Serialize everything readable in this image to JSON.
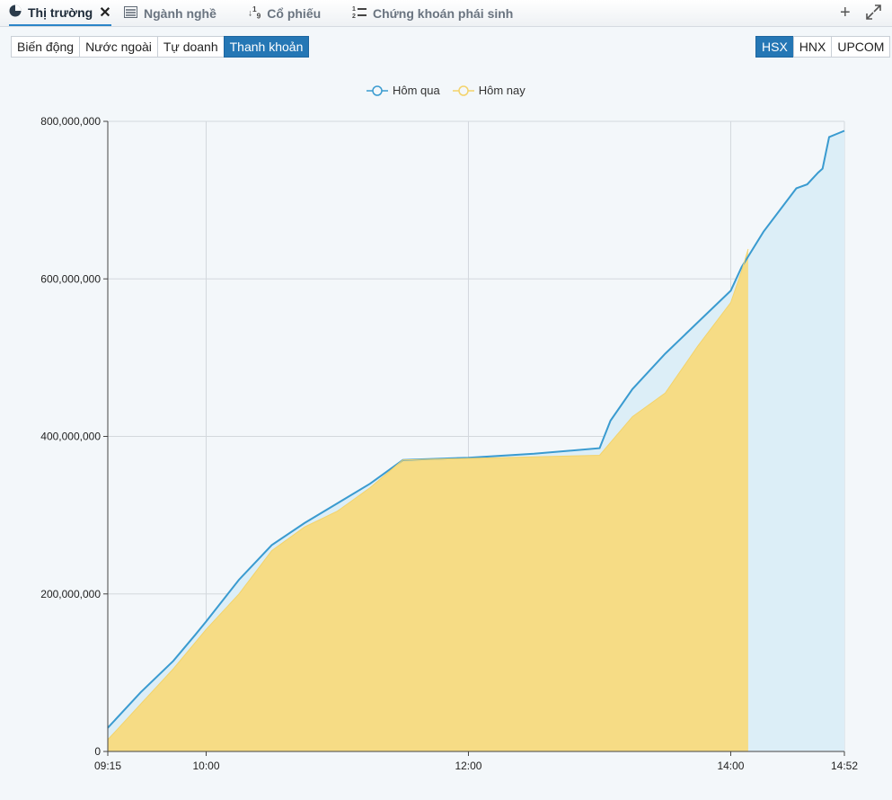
{
  "tabs": [
    {
      "label": "Thị trường",
      "icon": "pie-chart-icon"
    },
    {
      "label": "Ngành nghề",
      "icon": "list-icon"
    },
    {
      "label": "Cổ phiếu",
      "icon": "sort-numeric-icon"
    },
    {
      "label": "Chứng khoán phái sinh",
      "icon": "numbered-list-icon"
    }
  ],
  "window_icons": {
    "add": "plus-icon",
    "expand": "expand-icon"
  },
  "views": [
    "Biến động",
    "Nước ngoài",
    "Tự doanh",
    "Thanh khoản"
  ],
  "active_view": "Thanh khoản",
  "exchanges": [
    "HSX",
    "HNX",
    "UPCOM"
  ],
  "active_exchange": "HSX",
  "colors": {
    "yesterday": "#3a9bd0",
    "yesterday_fill": "#dceef7",
    "today": "#f6dc85",
    "today_stroke": "#f3d36b",
    "accent": "#2577b5"
  },
  "chart_data": {
    "type": "area",
    "legend": [
      "Hôm qua",
      "Hôm nay"
    ],
    "legend_position": "top-center",
    "ylim": [
      0,
      800000000
    ],
    "yticks": [
      "0",
      "200,000,000",
      "400,000,000",
      "600,000,000",
      "800,000,000"
    ],
    "xlim": [
      "09:15",
      "14:52"
    ],
    "xticks": [
      "09:15",
      "10:00",
      "12:00",
      "14:00",
      "14:52"
    ],
    "grid": true,
    "series": [
      {
        "name": "Hôm qua",
        "x": [
          "09:15",
          "09:30",
          "09:45",
          "09:55",
          "10:00",
          "10:15",
          "10:30",
          "10:45",
          "11:00",
          "11:15",
          "11:30",
          "12:00",
          "12:30",
          "13:00",
          "13:05",
          "13:15",
          "13:30",
          "13:45",
          "14:00",
          "14:05",
          "14:15",
          "14:30",
          "14:35",
          "14:40",
          "14:42",
          "14:45",
          "14:52"
        ],
        "values": [
          30000000,
          75000000,
          115000000,
          148000000,
          165000000,
          218000000,
          262000000,
          290000000,
          315000000,
          340000000,
          370000000,
          373000000,
          378000000,
          385000000,
          420000000,
          460000000,
          505000000,
          545000000,
          585000000,
          615000000,
          660000000,
          715000000,
          720000000,
          735000000,
          740000000,
          780000000,
          788000000
        ]
      },
      {
        "name": "Hôm nay",
        "x": [
          "09:15",
          "09:30",
          "09:45",
          "10:00",
          "10:15",
          "10:30",
          "10:45",
          "11:00",
          "11:05",
          "11:15",
          "11:30",
          "12:00",
          "12:30",
          "13:00",
          "13:15",
          "13:30",
          "13:45",
          "14:00",
          "14:05",
          "14:08"
        ],
        "values": [
          15000000,
          60000000,
          105000000,
          155000000,
          200000000,
          255000000,
          285000000,
          305000000,
          315000000,
          335000000,
          370000000,
          372000000,
          374000000,
          376000000,
          425000000,
          455000000,
          515000000,
          570000000,
          610000000,
          638000000
        ]
      }
    ]
  }
}
